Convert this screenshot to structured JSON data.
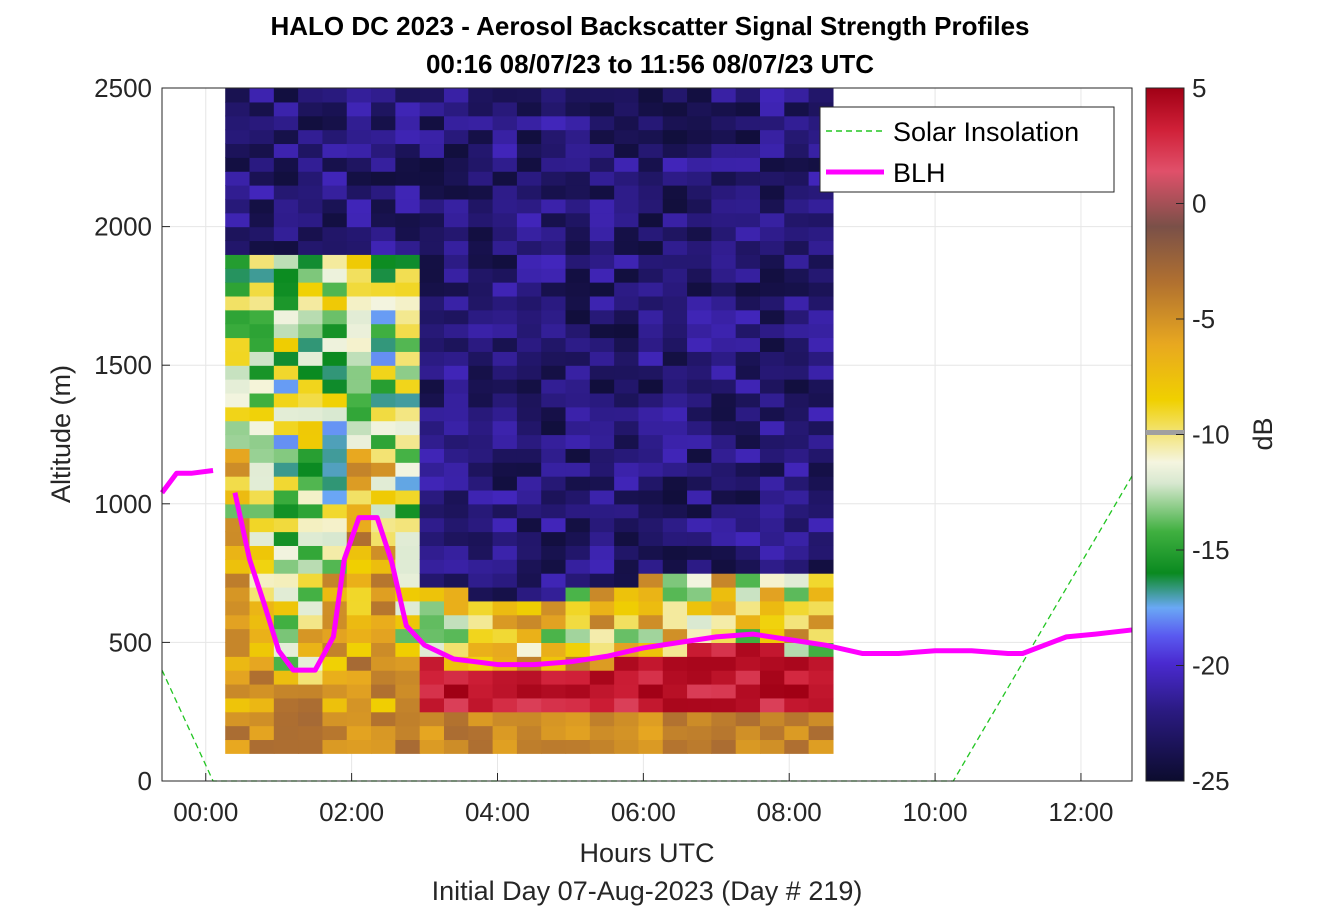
{
  "chart_data": {
    "type": "heatmap",
    "title": "HALO DC 2023 - Aerosol Backscatter Signal Strength Profiles",
    "subtitle": "00:16 08/07/23 to 11:56 08/07/23  UTC",
    "xlabel": "Hours UTC",
    "footer": "Initial Day 07-Aug-2023 (Day # 219)",
    "ylabel": "Altitude (m)",
    "colorbar_label": "dB",
    "xlim_hours": [
      -0.6,
      12.7
    ],
    "ylim": [
      0,
      2500
    ],
    "x_ticks": [
      0,
      2,
      4,
      6,
      8,
      10,
      12
    ],
    "x_tick_labels": [
      "00:00",
      "02:00",
      "04:00",
      "06:00",
      "08:00",
      "10:00",
      "12:00"
    ],
    "y_ticks": [
      0,
      500,
      1000,
      1500,
      2000,
      2500
    ],
    "y_tick_labels": [
      "0",
      "500",
      "1000",
      "1500",
      "2000",
      "2500"
    ],
    "colorbar_ticks": [
      5,
      0,
      -5,
      -10,
      -15,
      -20,
      -25
    ],
    "colorbar_tick_labels": [
      "5",
      "0",
      "-5",
      "-10",
      "-15",
      "-20",
      "-25"
    ],
    "clim": [
      -25,
      5
    ],
    "grid": true,
    "legend_position": "top-right",
    "legend": [
      {
        "name": "Solar Insolation",
        "style": "dashed",
        "color": "#22c522"
      },
      {
        "name": "BLH",
        "style": "solid",
        "color": "#ff00ff"
      }
    ],
    "heatmap": {
      "x_start_hour": 0.2667,
      "x_step_hour": 0.3333,
      "columns": 25,
      "y_start_m": 100,
      "y_step_m": 50,
      "rows": 48,
      "model_note_hidden": true
    },
    "series": [
      {
        "name": "BLH",
        "x": [
          -0.6,
          -0.4,
          -0.2,
          0.1,
          0.4,
          0.6,
          0.8,
          1.0,
          1.2,
          1.5,
          1.75,
          1.9,
          2.1,
          2.35,
          2.55,
          2.75,
          3.0,
          3.4,
          4.0,
          4.5,
          5.0,
          5.5,
          6.0,
          6.5,
          7.0,
          7.5,
          8.0,
          8.5,
          9.0,
          9.5,
          10.0,
          10.5,
          11.0,
          11.2,
          11.5,
          11.8,
          12.2,
          12.7
        ],
        "y": [
          1040,
          1110,
          1110,
          1120,
          1040,
          800,
          640,
          470,
          400,
          400,
          520,
          800,
          950,
          950,
          790,
          560,
          490,
          440,
          420,
          420,
          430,
          450,
          480,
          500,
          520,
          530,
          510,
          490,
          460,
          460,
          470,
          470,
          460,
          460,
          490,
          520,
          530,
          545
        ]
      },
      {
        "name": "Solar Insolation",
        "x": [
          -0.6,
          0.1,
          10.25,
          12.7
        ],
        "y": [
          400,
          0,
          0,
          1100
        ]
      }
    ]
  }
}
